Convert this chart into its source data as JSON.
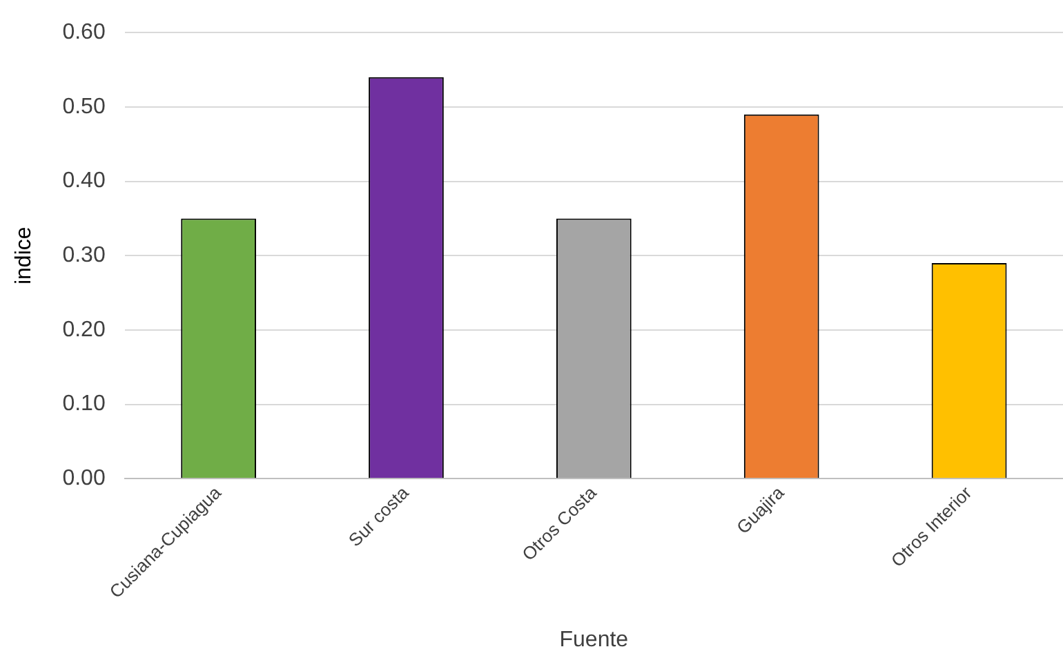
{
  "chart_data": {
    "type": "bar",
    "xlabel": "Fuente",
    "ylabel": "indice",
    "categories": [
      "Cusiana-Cupiagua",
      "Sur costa",
      "Otros Costa",
      "Guajira",
      "Otros Interior"
    ],
    "values": [
      0.35,
      0.54,
      0.35,
      0.49,
      0.29
    ],
    "colors": [
      "#70ad47",
      "#7030a0",
      "#a5a5a5",
      "#ed7d31",
      "#ffc000"
    ],
    "ylim": [
      0,
      0.6
    ],
    "yticks": [
      {
        "value": 0,
        "label": "0.00"
      },
      {
        "value": 0.1,
        "label": "0.10"
      },
      {
        "value": 0.2,
        "label": "0.20"
      },
      {
        "value": 0.3,
        "label": "0.30"
      },
      {
        "value": 0.4,
        "label": "0.40"
      },
      {
        "value": 0.5,
        "label": "0.50"
      },
      {
        "value": 0.6,
        "label": "0.60"
      }
    ],
    "grid": "y",
    "legend": false
  }
}
